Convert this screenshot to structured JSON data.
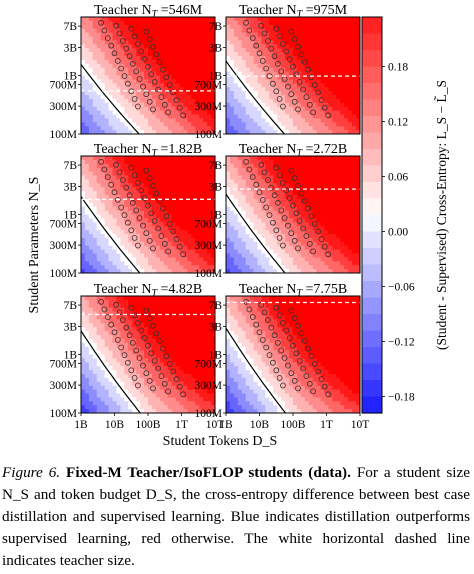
{
  "chart_data": {
    "type": "heatmap",
    "xlabel": "Student Tokens D_S",
    "ylabel": "Student Parameters N_S",
    "x_ticks": [
      "1B",
      "10B",
      "100B",
      "1T",
      "10T"
    ],
    "y_ticks": [
      "100M",
      "300M",
      "700M",
      "1B",
      "3B",
      "7B"
    ],
    "x_scale": "log",
    "y_scale": "log",
    "xlim": [
      "1B",
      "10T"
    ],
    "ylim": [
      "100M",
      "10B"
    ],
    "colorbar": {
      "label": "(Student - Supervised) Cross-Entropy: L_S − L̃_S",
      "ticks": [
        "0.18",
        "0.12",
        "0.06",
        "0.00",
        "−0.06",
        "−0.12",
        "−0.18"
      ],
      "range": [
        -0.18,
        0.18
      ],
      "colormap": "bwr"
    },
    "panels": [
      {
        "teacher_size": "546M",
        "title_value": "546M",
        "teacher_size_params": 546000000
      },
      {
        "teacher_size": "975M",
        "title_value": "975M",
        "teacher_size_params": 975000000
      },
      {
        "teacher_size": "1.82B",
        "title_value": "1.82B",
        "teacher_size_params": 1820000000
      },
      {
        "teacher_size": "2.72B",
        "title_value": "2.72B",
        "teacher_size_params": 2720000000
      },
      {
        "teacher_size": "4.82B",
        "title_value": "4.82B",
        "teacher_size_params": 4820000000
      },
      {
        "teacher_size": "7.75B",
        "title_value": "7.75B",
        "teacher_size_params": 7750000000
      }
    ],
    "teacher_line": "white horizontal dashed",
    "markers": "open circles (IsoFLOP student runs)",
    "contour": "black solid zero contour"
  },
  "panel_title_prefix": "Teacher N",
  "panel_title_sub": "T",
  "panel_title_eq": " =",
  "caption": {
    "label": "Figure 6.",
    "title": "Fixed-M Teacher/IsoFLOP students (data).",
    "body": "For a student size N_S and token budget D_S, the cross-entropy difference between best case distillation and supervised learning. Blue indicates distillation outperforms supervised learning, red otherwise. The white horizontal dashed line indicates teacher size."
  }
}
